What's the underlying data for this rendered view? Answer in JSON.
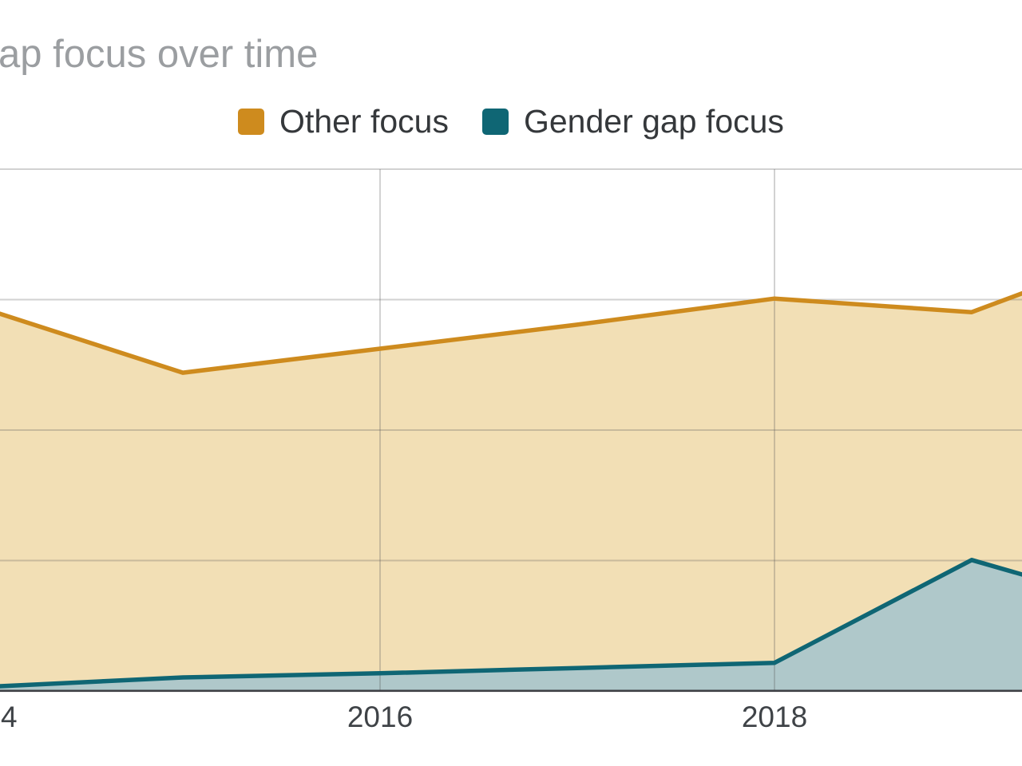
{
  "title": {
    "text": "ap focus over time"
  },
  "legend": {
    "position": "top-center",
    "items": [
      {
        "label": "Other focus",
        "color": "#ce8b1e"
      },
      {
        "label": "Gender gap focus",
        "color": "#0f6674"
      }
    ]
  },
  "x_axis": {
    "tick_labels": [
      {
        "text": "4",
        "note": "partial '2014' cut off at left crop edge"
      },
      {
        "text": "2016"
      },
      {
        "text": "2018"
      }
    ]
  },
  "colors": {
    "background": "#ffffff",
    "title_text": "#9b9ea1",
    "legend_text": "#35383b",
    "axis_text": "#3f4347",
    "gridline": "#cccccc",
    "axis_baseline": "#3e4045",
    "other_line": "#ce8b1e",
    "other_fill": "#f2dfb5",
    "gender_line": "#0f6674",
    "gender_fill": "#afc8ca"
  },
  "chart_data": {
    "type": "area",
    "stacked": false,
    "title": "ap focus over time",
    "xlabel": "",
    "ylabel": "",
    "x": [
      2013.85,
      2015,
      2016,
      2017,
      2018,
      2019,
      2019.34
    ],
    "series": [
      {
        "name": "Other focus",
        "color": "#ce8b1e",
        "fill": "#f2dfb5",
        "values": [
          75.0,
          61.0,
          65.6,
          70.2,
          75.2,
          72.6,
          77.4
        ]
      },
      {
        "name": "Gender gap focus",
        "color": "#0f6674",
        "fill": "#afc8ca",
        "values": [
          0.5,
          2.6,
          3.4,
          4.4,
          5.4,
          25.1,
          21.4
        ]
      }
    ],
    "x_ticks_labeled": [
      "2016",
      "2018"
    ],
    "partial_left_tick": "4",
    "ylim": [
      0,
      100
    ],
    "y_gridline_step": 25,
    "grid": true,
    "legend_position": "top",
    "crop_note": "chart is cropped at left and right edges; first and last points are values at the crop edges; y-axis tick labels are cropped out of view, 0-100 scale estimated from gridlines"
  }
}
